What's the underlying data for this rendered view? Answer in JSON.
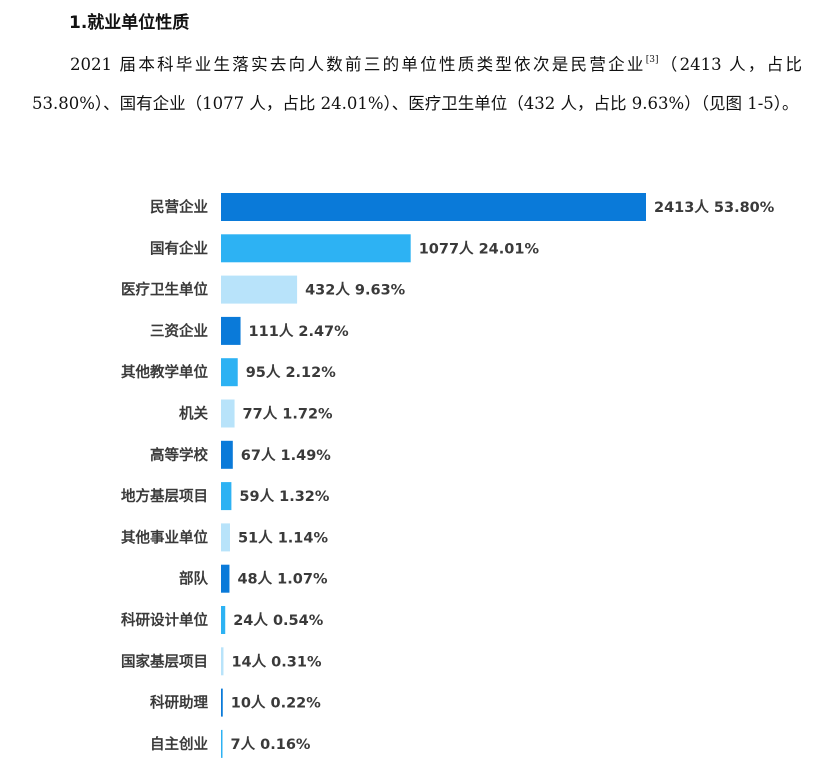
{
  "section": {
    "heading": "1.就业单位性质",
    "paragraph_main": "2021 届本科毕业生落实去向人数前三的单位性质类型依次是民营企业",
    "footnote_mark": "[3]",
    "paragraph_rest": "（2413 人，占比 53.80%）、国有企业（1077 人，占比 24.01%）、医疗卫生单位（432 人，占比 9.63%）（见图 1-5）。"
  },
  "colors": {
    "dark_blue": "#0a7ad9",
    "mid_blue": "#2db2f3",
    "light_blue": "#b8e3fa"
  },
  "chart_data": {
    "type": "bar",
    "orientation": "horizontal",
    "title": "",
    "xlabel": "",
    "ylabel": "",
    "categories": [
      "民营企业",
      "国有企业",
      "医疗卫生单位",
      "三资企业",
      "其他教学单位",
      "机关",
      "高等学校",
      "地方基层项目",
      "其他事业单位",
      "部队",
      "科研设计单位",
      "国家基层项目",
      "科研助理",
      "自主创业"
    ],
    "values": [
      2413,
      1077,
      432,
      111,
      95,
      77,
      67,
      59,
      51,
      48,
      24,
      14,
      10,
      7
    ],
    "data_labels": [
      "2413人 53.80%",
      "1077人 24.01%",
      "432人 9.63%",
      "111人 2.47%",
      "95人 2.12%",
      "77人 1.72%",
      "67人 1.49%",
      "59人 1.32%",
      "51人 1.14%",
      "48人 1.07%",
      "24人 0.54%",
      "14人 0.31%",
      "10人 0.22%",
      "7人 0.16%"
    ],
    "bar_colors": [
      "#0a7ad9",
      "#2db2f3",
      "#b8e3fa",
      "#0a7ad9",
      "#2db2f3",
      "#b8e3fa",
      "#0a7ad9",
      "#2db2f3",
      "#b8e3fa",
      "#0a7ad9",
      "#2db2f3",
      "#b8e3fa",
      "#0a7ad9",
      "#2db2f3"
    ],
    "grid": false,
    "legend": "none"
  }
}
